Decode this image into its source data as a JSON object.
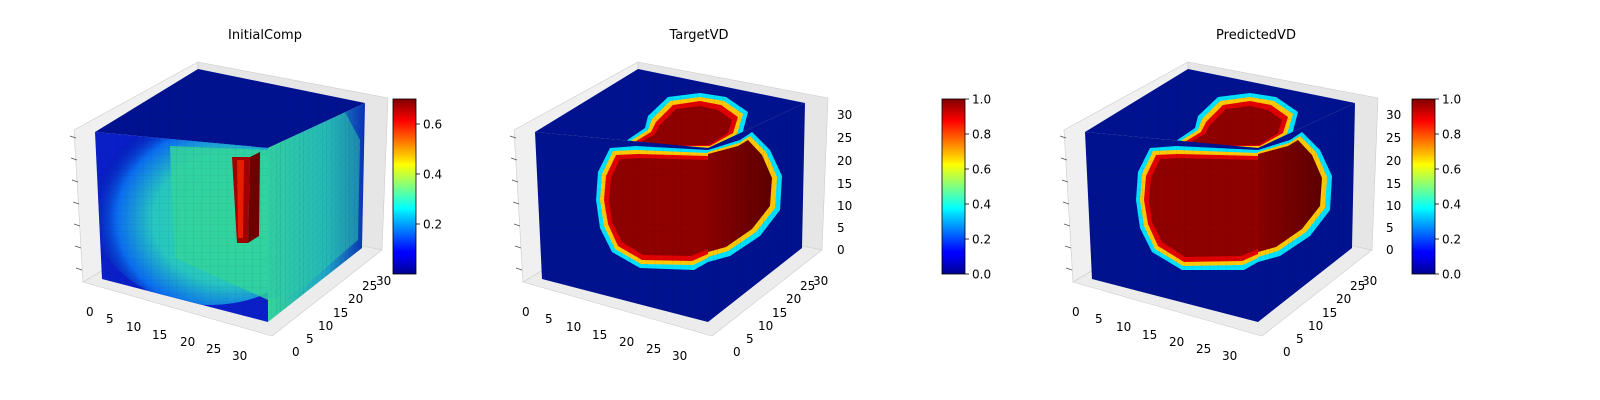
{
  "chart_data": [
    {
      "type": "voxel3d",
      "title": "InitialComp",
      "grid_size": [
        32,
        32,
        32
      ],
      "x_ticks": [
        "0",
        "5",
        "10",
        "15",
        "20",
        "25",
        "30"
      ],
      "y_ticks": [
        "0",
        "5",
        "10",
        "15",
        "20",
        "25",
        "30"
      ],
      "z_ticks": [],
      "colormap": "jet",
      "colorbar": {
        "min": 0.0,
        "max": 0.7,
        "tick_values": [
          0.2,
          0.4,
          0.6
        ],
        "tick_labels": [
          "0.2",
          "0.4",
          "0.6"
        ]
      },
      "field": {
        "background": 0.0,
        "interior": 0.25,
        "peak": 0.7
      }
    },
    {
      "type": "voxel3d",
      "title": "TargetVD",
      "grid_size": [
        32,
        32,
        32
      ],
      "x_ticks": [
        "0",
        "5",
        "10",
        "15",
        "20",
        "25",
        "30"
      ],
      "y_ticks": [
        "0",
        "5",
        "10",
        "15",
        "20",
        "25",
        "30"
      ],
      "z_ticks": [
        "0",
        "5",
        "10",
        "15",
        "20",
        "25",
        "30"
      ],
      "colormap": "jet",
      "colorbar": {
        "min": 0.0,
        "max": 1.0,
        "tick_values": [
          0.0,
          0.2,
          0.4,
          0.6,
          0.8,
          1.0
        ],
        "tick_labels": [
          "0.0",
          "0.2",
          "0.4",
          "0.6",
          "0.8",
          "1.0"
        ]
      },
      "field": {
        "background": 0.0,
        "interior": 1.0
      }
    },
    {
      "type": "voxel3d",
      "title": "PredictedVD",
      "grid_size": [
        32,
        32,
        32
      ],
      "x_ticks": [
        "0",
        "5",
        "10",
        "15",
        "20",
        "25",
        "30"
      ],
      "y_ticks": [
        "0",
        "5",
        "10",
        "15",
        "20",
        "25",
        "30"
      ],
      "z_ticks": [
        "0",
        "5",
        "10",
        "15",
        "20",
        "25",
        "30"
      ],
      "colormap": "jet",
      "colorbar": {
        "min": 0.0,
        "max": 1.0,
        "tick_values": [
          0.0,
          0.2,
          0.4,
          0.6,
          0.8,
          1.0
        ],
        "tick_labels": [
          "0.0",
          "0.2",
          "0.4",
          "0.6",
          "0.8",
          "1.0"
        ]
      },
      "field": {
        "background": 0.0,
        "interior": 1.0
      }
    }
  ]
}
